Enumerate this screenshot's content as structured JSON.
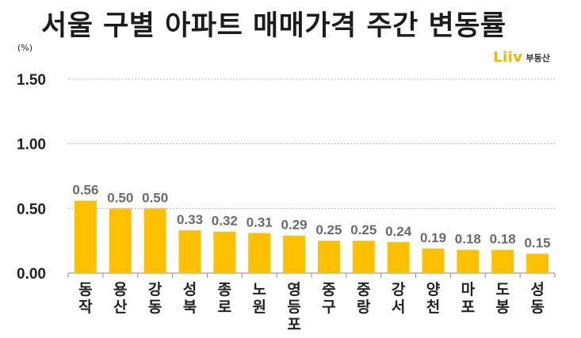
{
  "chart_data": {
    "type": "bar",
    "title": "서울 구별 아파트 매매가격 주간 변동률",
    "unit": "(%)",
    "categories": [
      "동작",
      "용산",
      "강동",
      "성북",
      "종로",
      "노원",
      "영등포",
      "중구",
      "중랑",
      "강서",
      "양천",
      "마포",
      "도봉",
      "성동"
    ],
    "values": [
      0.56,
      0.5,
      0.5,
      0.33,
      0.32,
      0.31,
      0.29,
      0.25,
      0.25,
      0.24,
      0.19,
      0.18,
      0.18,
      0.15
    ],
    "value_labels": [
      "0.56",
      "0.50",
      "0.50",
      "0.33",
      "0.32",
      "0.31",
      "0.29",
      "0.25",
      "0.25",
      "0.24",
      "0.19",
      "0.18",
      "0.18",
      "0.15"
    ],
    "ylim": [
      0,
      1.5
    ],
    "yticks": [
      "0.00",
      "0.50",
      "1.00",
      "1.50"
    ],
    "ytick_values": [
      0,
      0.5,
      1.0,
      1.5
    ],
    "xlabel": "",
    "ylabel": "",
    "grid": "horizontal dashed",
    "bar_color": "#FFC000"
  },
  "brand": {
    "logo": "Liiv",
    "suffix": "부동산",
    "color": "#F2B705"
  }
}
